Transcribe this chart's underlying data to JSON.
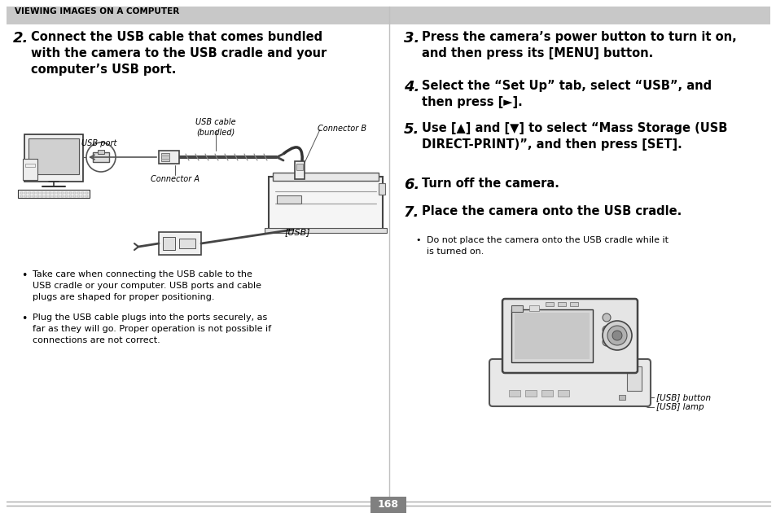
{
  "bg_color": "#ffffff",
  "header_bg": "#c8c8c8",
  "header_text": "VIEWING IMAGES ON A COMPUTER",
  "page_number": "168",
  "page_num_bg": "#808080",
  "page_num_color": "#ffffff",
  "left_col": {
    "step_num": "2.",
    "step_text": "Connect the USB cable that comes bundled\nwith the camera to the USB cradle and your\ncomputer’s USB port.",
    "bullets": [
      "Take care when connecting the USB cable to the\nUSB cradle or your computer. USB ports and cable\nplugs are shaped for proper positioning.",
      "Plug the USB cable plugs into the ports securely, as\nfar as they will go. Proper operation is not possible if\nconnections are not correct."
    ],
    "diagram_labels": {
      "usb_port": "USB port",
      "usb_cable": "USB cable\n(bundled)",
      "connector_b": "Connector B",
      "connector_a": "Connector A",
      "usb_label": "[USB]"
    }
  },
  "right_col": {
    "steps": [
      {
        "num": "3.",
        "text": "Press the camera’s power button to turn it on,\nand then press its [MENU] button."
      },
      {
        "num": "4.",
        "text": "Select the “Set Up” tab, select “USB”, and\nthen press [►]."
      },
      {
        "num": "5.",
        "text": "Use [▲] and [▼] to select “Mass Storage (USB\nDIRECT-PRINT)”, and then press [SET]."
      },
      {
        "num": "6.",
        "text": "Turn off the camera."
      },
      {
        "num": "7.",
        "text": "Place the camera onto the USB cradle."
      }
    ],
    "bullet7": "Do not place the camera onto the USB cradle while it\nis turned on.",
    "usb_button_label": "[USB] button",
    "usb_lamp_label": "[USB] lamp"
  }
}
